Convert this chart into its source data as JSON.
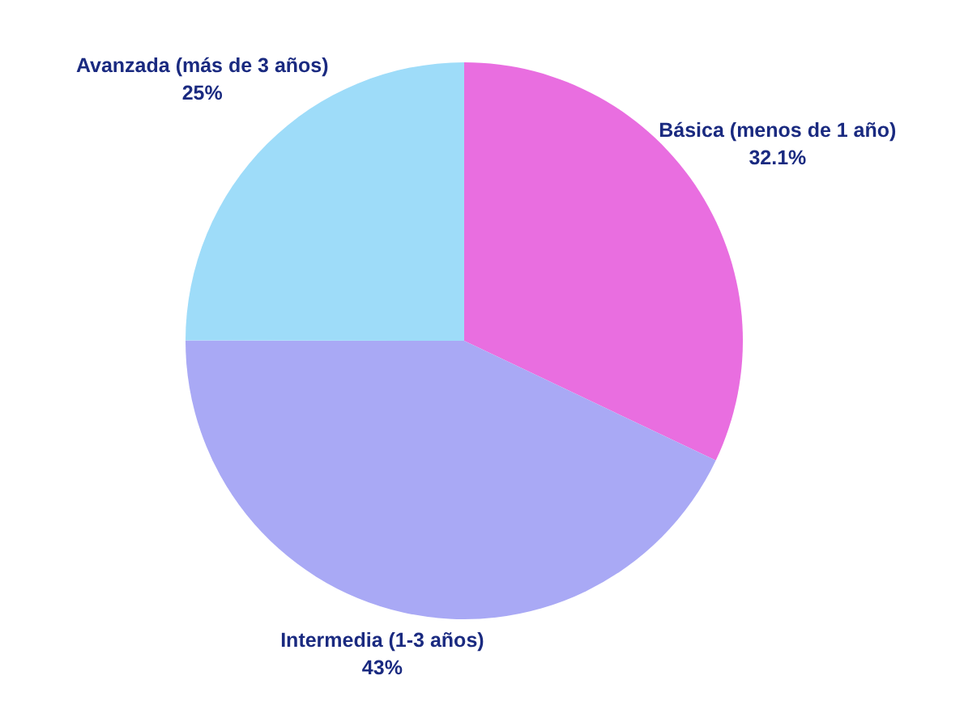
{
  "chart_data": {
    "type": "pie",
    "categories": [
      "Básica (menos de 1 año)",
      "Intermedia (1-3 años)",
      "Avanzada (más de 3 años)"
    ],
    "values": [
      32.1,
      43,
      25
    ],
    "colors": [
      "#e96ee0",
      "#a9a9f5",
      "#9edcf9"
    ],
    "value_labels": [
      "32.1%",
      "43%",
      "25%"
    ]
  }
}
